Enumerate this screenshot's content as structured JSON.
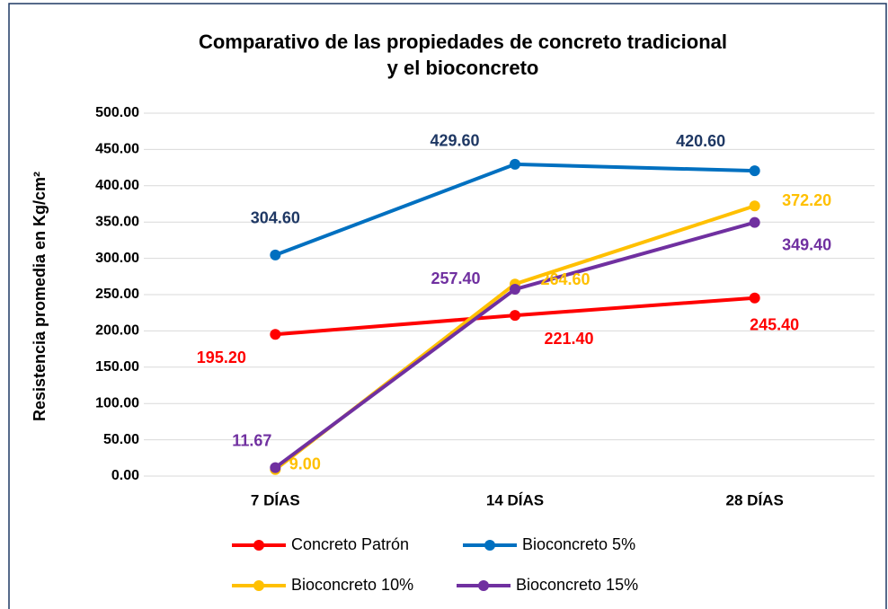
{
  "chart_data": {
    "type": "line",
    "title": [
      "Comparativo de las propiedades de concreto tradicional",
      "y el bioconcreto"
    ],
    "ylabel": "Resistencia  promedia en Kg/cm²",
    "categories": [
      "7 DÍAS",
      "14 DÍAS",
      "28 DÍAS"
    ],
    "series": [
      {
        "name": "Concreto Patrón",
        "color": "#ff0000",
        "label_color": "#ff0000",
        "values": [
          195.2,
          221.4,
          245.4
        ],
        "value_labels": [
          "195.20",
          "221.40",
          "245.40"
        ]
      },
      {
        "name": "Bioconcreto 5%",
        "color": "#0070c0",
        "label_color": "#1f3864",
        "values": [
          304.6,
          429.6,
          420.6
        ],
        "value_labels": [
          "304.60",
          "429.60",
          "420.60"
        ]
      },
      {
        "name": "Bioconcreto 10%",
        "color": "#ffc000",
        "label_color": "#ffc000",
        "values": [
          9,
          264.6,
          372.2
        ],
        "value_labels": [
          "9.00",
          "264.60",
          "372.20"
        ]
      },
      {
        "name": "Bioconcreto 15%",
        "color": "#7030a0",
        "label_color": "#7030a0",
        "values": [
          11.67,
          257.4,
          349.4
        ],
        "value_labels": [
          "11.67",
          "257.40",
          "349.40"
        ]
      }
    ],
    "ylim": [
      0,
      500
    ],
    "yticks": [
      {
        "value": 0,
        "label": "0.00"
      },
      {
        "value": 50,
        "label": "50.00"
      },
      {
        "value": 100,
        "label": "100.00"
      },
      {
        "value": 150,
        "label": "150.00"
      },
      {
        "value": 200,
        "label": "200.00"
      },
      {
        "value": 250,
        "label": "250.00"
      },
      {
        "value": 300,
        "label": "300.00"
      },
      {
        "value": 350,
        "label": "350.00"
      },
      {
        "value": 400,
        "label": "400.00"
      },
      {
        "value": 450,
        "label": "450.00"
      },
      {
        "value": 500,
        "label": "500.00"
      }
    ],
    "grid": true
  }
}
